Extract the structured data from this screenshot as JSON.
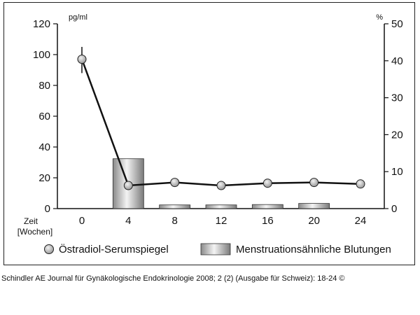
{
  "chart_data": {
    "type": "bar+line",
    "x": [
      0,
      4,
      8,
      12,
      16,
      20,
      24
    ],
    "xtick_labels": [
      "0",
      "4",
      "8",
      "12",
      "16",
      "20",
      "24"
    ],
    "xlabel": [
      "Zeit",
      "[Wochen]"
    ],
    "left_axis": {
      "unit": "pg/ml",
      "ylim": [
        0,
        120
      ],
      "ticks": [
        0,
        20,
        40,
        60,
        80,
        100,
        120
      ]
    },
    "right_axis": {
      "unit": "%",
      "ylim": [
        0,
        50
      ],
      "ticks": [
        0,
        10,
        20,
        30,
        40,
        50
      ]
    },
    "series": [
      {
        "name": "Östradiol-Serumspiegel",
        "kind": "line",
        "axis": "left",
        "values": [
          97,
          15,
          17,
          15,
          16.5,
          17,
          16
        ],
        "error_bars": [
          {
            "x": 0,
            "low": 88,
            "high": 105
          }
        ],
        "color": "#c8c8c8"
      },
      {
        "name": "Menstruationsähnliche Blutungen",
        "kind": "bar",
        "axis": "right",
        "values": [
          null,
          13.5,
          1,
          1,
          1.1,
          1.4,
          null
        ],
        "color": "#d0d0d0"
      }
    ],
    "legend": [
      "Östradiol-Serumspiegel",
      "Menstruationsähnliche Blutungen"
    ],
    "legend_position": "bottom"
  },
  "caption": "Schindler AE Journal für Gynäkologische Endokrinologie 2008; 2 (2) (Ausgabe für Schweiz): 18-24 ©"
}
